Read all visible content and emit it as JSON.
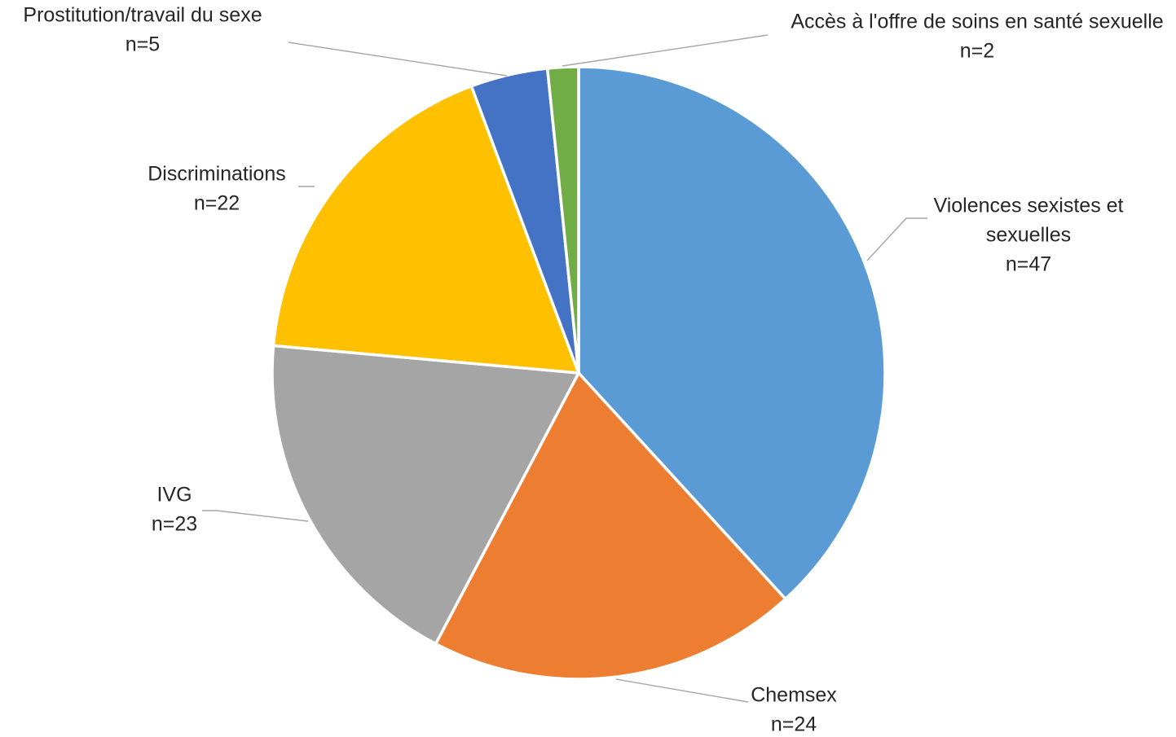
{
  "chart_data": {
    "type": "pie",
    "title": "",
    "start_angle_deg": 0,
    "direction": "clockwise",
    "slices": [
      {
        "name": "Violences sexistes et sexuelles",
        "label_lines": [
          "Violences sexistes et",
          "sexuelles"
        ],
        "count_label": "n=47",
        "value": 47,
        "color": "#5b9bd5"
      },
      {
        "name": "Chemsex",
        "label_lines": [
          "Chemsex"
        ],
        "count_label": "n=24",
        "value": 24,
        "color": "#ed7d31"
      },
      {
        "name": "IVG",
        "label_lines": [
          "IVG"
        ],
        "count_label": "n=23",
        "value": 23,
        "color": "#a5a5a5"
      },
      {
        "name": "Discriminations",
        "label_lines": [
          "Discriminations"
        ],
        "count_label": "n=22",
        "value": 22,
        "color": "#ffc000"
      },
      {
        "name": "Prostitution/travail du sexe",
        "label_lines": [
          "Prostitution/travail du sexe"
        ],
        "count_label": "n=5",
        "value": 5,
        "color": "#4472c4"
      },
      {
        "name": "Accès à l'offre de soins en santé sexuelle",
        "label_lines": [
          "Accès à l'offre de soins en santé sexuelle"
        ],
        "count_label": "n=2",
        "value": 2,
        "color": "#70ad47"
      }
    ]
  }
}
